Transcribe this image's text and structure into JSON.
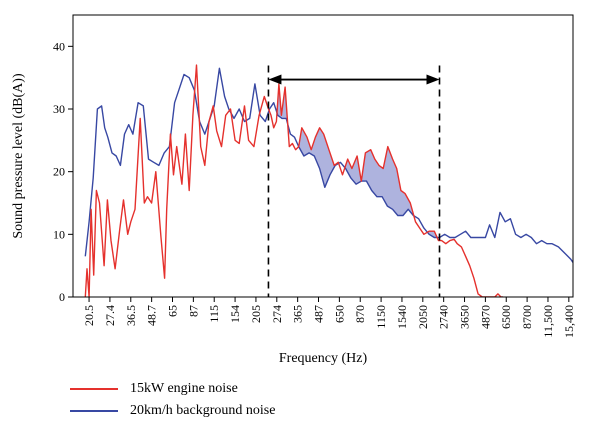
{
  "chart_data": {
    "type": "line",
    "title": "",
    "xlabel": "Frequency (Hz)",
    "ylabel": "Sound pressure level (dB(A))",
    "ylim": [
      0,
      45
    ],
    "yticks": [
      0,
      10,
      20,
      30,
      40
    ],
    "xticks": [
      "20.5",
      "27.4",
      "36.5",
      "48.7",
      "65",
      "87",
      "115",
      "154",
      "205",
      "274",
      "365",
      "487",
      "650",
      "870",
      "1150",
      "1540",
      "2050",
      "2740",
      "3650",
      "4870",
      "6500",
      "8700",
      "11,500",
      "15,400"
    ],
    "xrange_index": [
      -0.77,
      23.2
    ],
    "grid": false,
    "annotation": {
      "type": "double-arrow",
      "from_index": 8.6,
      "to_index": 16.8,
      "y": 34.7,
      "dashed_guides": true
    },
    "shaded_region_color": "#aeb3de",
    "series": [
      {
        "name": "15kW engine noise",
        "color": "#e5312d",
        "x": [
          -0.18,
          -0.1,
          0.0,
          0.1,
          0.22,
          0.35,
          0.5,
          0.72,
          0.88,
          1.05,
          1.25,
          1.48,
          1.65,
          1.85,
          2.0,
          2.2,
          2.45,
          2.65,
          2.8,
          3.0,
          3.2,
          3.45,
          3.62,
          3.72,
          3.9,
          4.05,
          4.2,
          4.45,
          4.62,
          4.8,
          4.98,
          5.15,
          5.35,
          5.55,
          5.75,
          5.95,
          6.12,
          6.35,
          6.55,
          6.78,
          7.0,
          7.2,
          7.45,
          7.65,
          7.9,
          8.15,
          8.4,
          8.6,
          8.72,
          8.85,
          8.98,
          9.1,
          9.22,
          9.4,
          9.6,
          9.75,
          9.9,
          10.05,
          10.2,
          10.45,
          10.65,
          10.85,
          11.05,
          11.25,
          11.5,
          11.75,
          11.95,
          12.15,
          12.4,
          12.6,
          12.85,
          13.05,
          13.25,
          13.5,
          13.7,
          13.9,
          14.1,
          14.32,
          14.55,
          14.75,
          14.95,
          15.15,
          15.4,
          15.65,
          15.85,
          16.05,
          16.3,
          16.55,
          16.75,
          16.9,
          17.1,
          17.3,
          17.5,
          17.65,
          17.85,
          18.05,
          18.25,
          18.45,
          18.65,
          18.85,
          19.05,
          19.25,
          19.45,
          19.6,
          19.75,
          19.85
        ],
        "y": [
          0,
          4.5,
          0,
          14,
          3.5,
          17,
          15,
          5,
          15.5,
          9,
          4.5,
          11,
          15.5,
          10,
          12,
          14,
          28.5,
          15,
          16,
          15,
          20,
          9.5,
          3,
          14,
          26,
          19.5,
          24,
          18,
          26,
          17,
          29,
          37,
          24,
          21,
          28,
          30.5,
          26.5,
          24,
          29,
          30,
          25,
          24.5,
          30.5,
          25,
          24,
          29,
          32,
          30,
          29,
          27,
          28,
          34,
          29,
          33.5,
          24,
          24.5,
          23.5,
          24,
          27,
          25.5,
          23.5,
          25.5,
          27,
          26,
          23.5,
          21,
          21.5,
          19.5,
          22,
          20.5,
          22.5,
          18.5,
          23,
          23.5,
          22,
          21,
          20.5,
          24,
          22,
          20.5,
          17,
          16.5,
          15,
          12,
          11,
          10,
          10.5,
          10.5,
          9,
          9,
          8.5,
          9,
          9.2,
          8.5,
          8,
          6.5,
          5,
          3,
          0.5,
          0,
          0,
          0,
          0,
          0.5,
          0,
          0
        ]
      },
      {
        "name": "20km/h background noise",
        "color": "#3848a3",
        "x": [
          -0.18,
          0.0,
          0.2,
          0.4,
          0.6,
          0.75,
          0.9,
          1.1,
          1.3,
          1.5,
          1.7,
          1.9,
          2.1,
          2.35,
          2.6,
          2.85,
          3.1,
          3.35,
          3.6,
          3.85,
          4.1,
          4.3,
          4.55,
          4.8,
          5.05,
          5.3,
          5.55,
          5.75,
          6.0,
          6.25,
          6.5,
          6.7,
          6.95,
          7.2,
          7.45,
          7.7,
          7.95,
          8.2,
          8.45,
          8.65,
          8.85,
          9.05,
          9.25,
          9.45,
          9.65,
          9.85,
          10.05,
          10.3,
          10.55,
          10.8,
          11.05,
          11.3,
          11.55,
          11.8,
          12.05,
          12.3,
          12.55,
          12.8,
          13.05,
          13.3,
          13.55,
          13.8,
          14.05,
          14.3,
          14.55,
          14.8,
          15.05,
          15.3,
          15.55,
          15.8,
          16.05,
          16.3,
          16.55,
          16.8,
          17.05,
          17.3,
          17.55,
          17.8,
          18.05,
          18.3,
          18.5,
          18.75,
          19.0,
          19.2,
          19.45,
          19.7,
          19.95,
          20.2,
          20.45,
          20.7,
          20.95,
          21.2,
          21.45,
          21.7,
          21.95,
          22.2,
          22.5,
          22.8,
          23.1,
          23.2
        ],
        "y": [
          6.5,
          12,
          19,
          30,
          30.5,
          27,
          25.5,
          23,
          22.5,
          21,
          26,
          27.5,
          26,
          31,
          30.5,
          22,
          21.5,
          21,
          23,
          24,
          31,
          33,
          35.5,
          35,
          33,
          28,
          26,
          28,
          30.5,
          36.5,
          32,
          30,
          28.5,
          30,
          28,
          28.5,
          34,
          29,
          28,
          30,
          31,
          29,
          28.5,
          28.5,
          26,
          25.5,
          24,
          22.5,
          23,
          22.5,
          20.5,
          17.5,
          19.5,
          21,
          21.5,
          20.5,
          19,
          18,
          18.5,
          18.5,
          17,
          16,
          16,
          14.5,
          14,
          13,
          13,
          14,
          13,
          12.5,
          11,
          10,
          9.5,
          9.5,
          10,
          9.5,
          9.5,
          10,
          10.5,
          9.5,
          9.5,
          9.5,
          9.5,
          11.5,
          9.5,
          13.5,
          12,
          12.5,
          10,
          9.5,
          10,
          9.5,
          8.5,
          9,
          8.5,
          8.5,
          8,
          7,
          6,
          5.5
        ]
      }
    ]
  },
  "legend": {
    "items": [
      {
        "label": "15kW engine noise",
        "color": "#e5312d"
      },
      {
        "label": "20km/h background noise",
        "color": "#3848a3"
      }
    ]
  }
}
